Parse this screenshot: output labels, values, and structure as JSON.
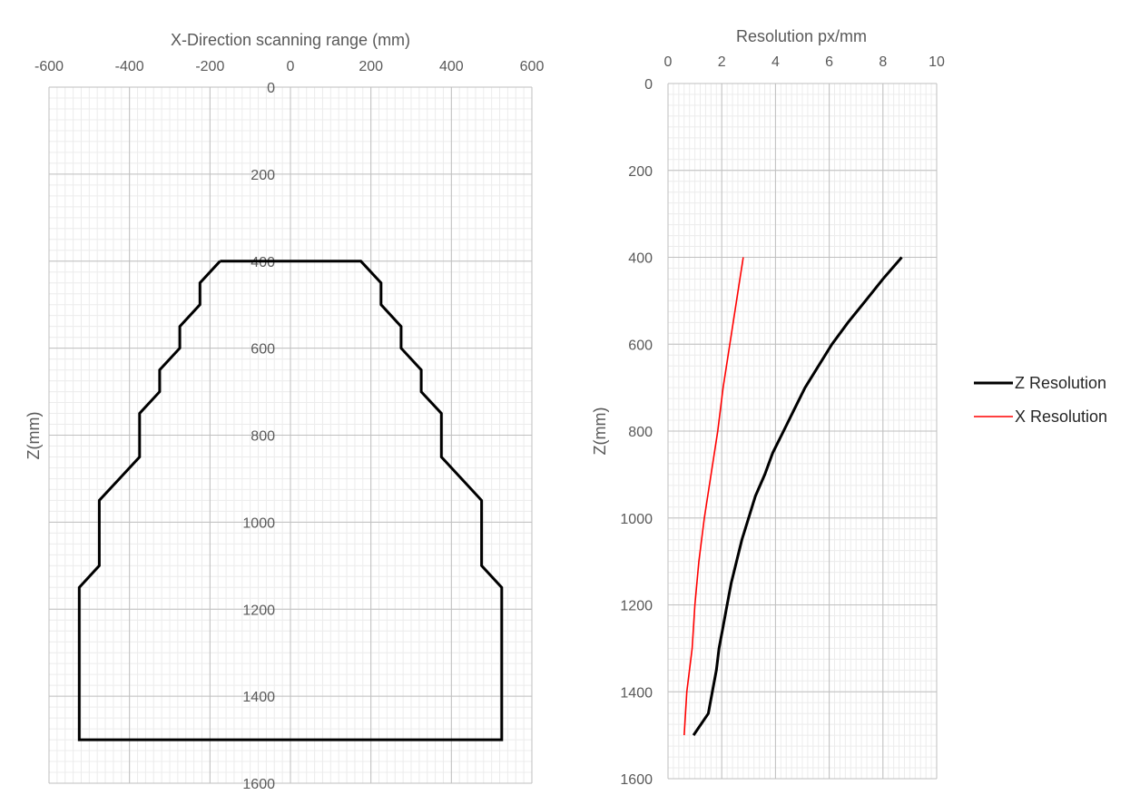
{
  "chart_data": [
    {
      "type": "line",
      "title": "",
      "xlabel": "X-Direction scanning range (mm)",
      "ylabel": "Z(mm)",
      "xlim": [
        -600,
        600
      ],
      "ylim": [
        0,
        1600
      ],
      "y_reversed": true,
      "x_ticks": [
        "-600",
        "-400",
        "-200",
        "0",
        "200",
        "400",
        "600"
      ],
      "y_ticks": [
        "0",
        "200",
        "400",
        "600",
        "800",
        "1000",
        "1200",
        "1400",
        "1600"
      ],
      "grid": "major and minor",
      "series": [
        {
          "color": "#000000",
          "points": [
            [
              -175,
              400
            ],
            [
              175,
              400
            ],
            [
              225,
              450
            ],
            [
              225,
              500
            ],
            [
              275,
              550
            ],
            [
              275,
              600
            ],
            [
              325,
              650
            ],
            [
              325,
              700
            ],
            [
              375,
              750
            ],
            [
              375,
              850
            ],
            [
              475,
              950
            ],
            [
              475,
              1100
            ],
            [
              525,
              1150
            ],
            [
              525,
              1500
            ],
            [
              -525,
              1500
            ],
            [
              -525,
              1150
            ],
            [
              -475,
              1100
            ],
            [
              -475,
              950
            ],
            [
              -375,
              850
            ],
            [
              -375,
              750
            ],
            [
              -325,
              700
            ],
            [
              -325,
              650
            ],
            [
              -275,
              600
            ],
            [
              -275,
              550
            ],
            [
              -225,
              500
            ],
            [
              -225,
              450
            ],
            [
              -175,
              400
            ]
          ]
        }
      ]
    },
    {
      "type": "line",
      "title": "",
      "xlabel": "Resolution px/mm",
      "ylabel": "Z(mm)",
      "xlim": [
        0,
        10
      ],
      "ylim": [
        0,
        1600
      ],
      "y_reversed": true,
      "x_ticks": [
        "0",
        "2",
        "4",
        "6",
        "8",
        "10"
      ],
      "y_ticks": [
        "0",
        "200",
        "400",
        "600",
        "800",
        "1000",
        "1200",
        "1400",
        "1600"
      ],
      "grid": "major and minor",
      "legend_position": "right",
      "series": [
        {
          "name": "Z Resolution",
          "color": "#000000",
          "points": [
            [
              8.7,
              400
            ],
            [
              8.0,
              450
            ],
            [
              7.35,
              500
            ],
            [
              6.7,
              550
            ],
            [
              6.1,
              600
            ],
            [
              5.6,
              650
            ],
            [
              5.1,
              700
            ],
            [
              4.7,
              750
            ],
            [
              4.3,
              800
            ],
            [
              3.9,
              850
            ],
            [
              3.6,
              900
            ],
            [
              3.25,
              950
            ],
            [
              3.0,
              1000
            ],
            [
              2.75,
              1050
            ],
            [
              2.55,
              1100
            ],
            [
              2.35,
              1150
            ],
            [
              2.2,
              1200
            ],
            [
              2.05,
              1250
            ],
            [
              1.9,
              1300
            ],
            [
              1.8,
              1350
            ],
            [
              1.65,
              1400
            ],
            [
              1.5,
              1450
            ],
            [
              0.95,
              1500
            ]
          ]
        },
        {
          "name": "X Resolution",
          "color": "#ff0000",
          "points": [
            [
              2.8,
              400
            ],
            [
              2.55,
              500
            ],
            [
              2.3,
              600
            ],
            [
              2.05,
              700
            ],
            [
              1.85,
              800
            ],
            [
              1.6,
              900
            ],
            [
              1.35,
              1000
            ],
            [
              1.15,
              1100
            ],
            [
              1.0,
              1200
            ],
            [
              0.9,
              1300
            ],
            [
              0.7,
              1400
            ],
            [
              0.6,
              1500
            ]
          ]
        }
      ]
    }
  ]
}
